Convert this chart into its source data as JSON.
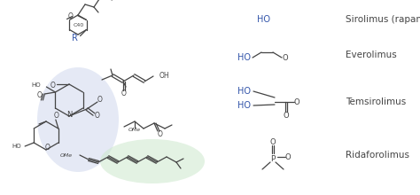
{
  "bg_color": "#ffffff",
  "blue_color": "#3355AA",
  "line_color": "#444444",
  "highlight_blue_fc": "#d0d8ee",
  "highlight_green_fc": "#cce8cc",
  "sirolimus_label": "Sirolimus (rapamycin)",
  "everolimus_label": "Everolimus",
  "temsirolimus_label": "Temsirolimus",
  "ridaforolimus_label": "Ridaforolimus",
  "fig_width": 4.74,
  "fig_height": 2.2,
  "dpi": 100
}
